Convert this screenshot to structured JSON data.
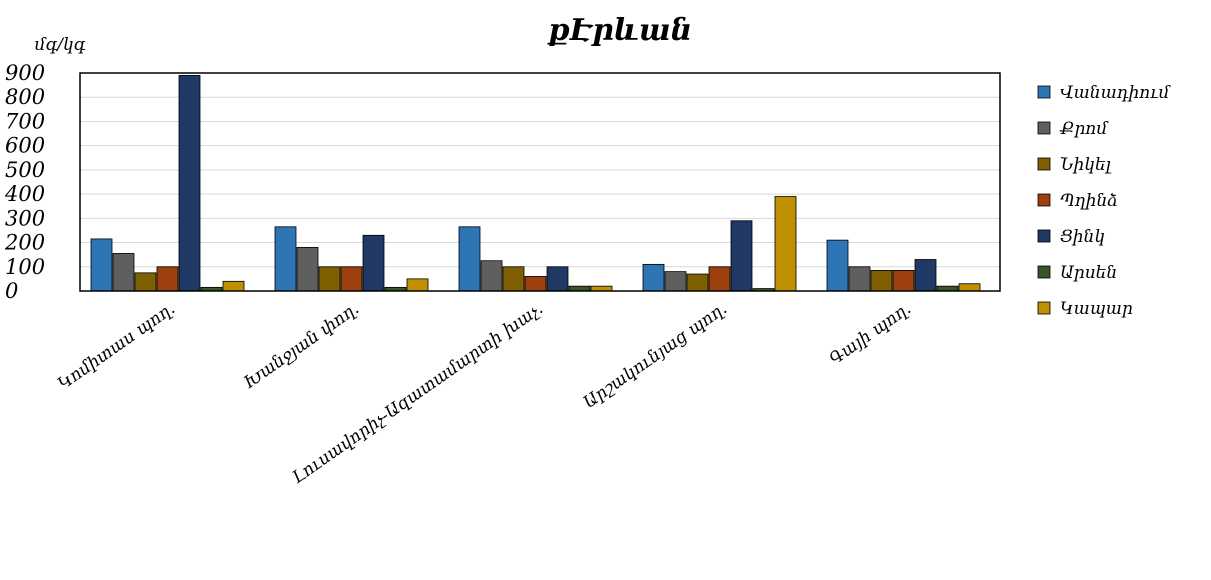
{
  "chart_data": {
    "type": "bar",
    "title": "քԷրևան",
    "ylabel": "մգ/կգ",
    "xlabel": "",
    "ylim": [
      0,
      900
    ],
    "yticks": [
      "0",
      "100",
      "200",
      "300",
      "400",
      "500",
      "600",
      "700",
      "800",
      "900"
    ],
    "grid": true,
    "legend_position": "right",
    "categories": [
      "Կոմիտաս պող.",
      "Խանջյան փող.",
      "Լուսավորիչ-Ազատամարտի խաչ.",
      "Արշակունյաց պող.",
      "Գայի պող."
    ],
    "series": [
      {
        "name": "Վանադիում",
        "color": "#2e75b6",
        "values": [
          215,
          265,
          265,
          110,
          210
        ]
      },
      {
        "name": "Քրոմ",
        "color": "#5f5f5f",
        "values": [
          155,
          180,
          125,
          80,
          100
        ]
      },
      {
        "name": "Նիկել",
        "color": "#7f6000",
        "values": [
          75,
          100,
          100,
          70,
          85
        ]
      },
      {
        "name": "Պղինձ",
        "color": "#9e3f0e",
        "values": [
          100,
          100,
          60,
          100,
          85
        ]
      },
      {
        "name": "Ցինկ",
        "color": "#1f3864",
        "values": [
          890,
          230,
          100,
          290,
          130
        ]
      },
      {
        "name": "Արսեն",
        "color": "#375623",
        "values": [
          15,
          15,
          20,
          10,
          20
        ]
      },
      {
        "name": "Կապար",
        "color": "#bf9000",
        "values": [
          40,
          50,
          20,
          390,
          30
        ]
      }
    ]
  }
}
